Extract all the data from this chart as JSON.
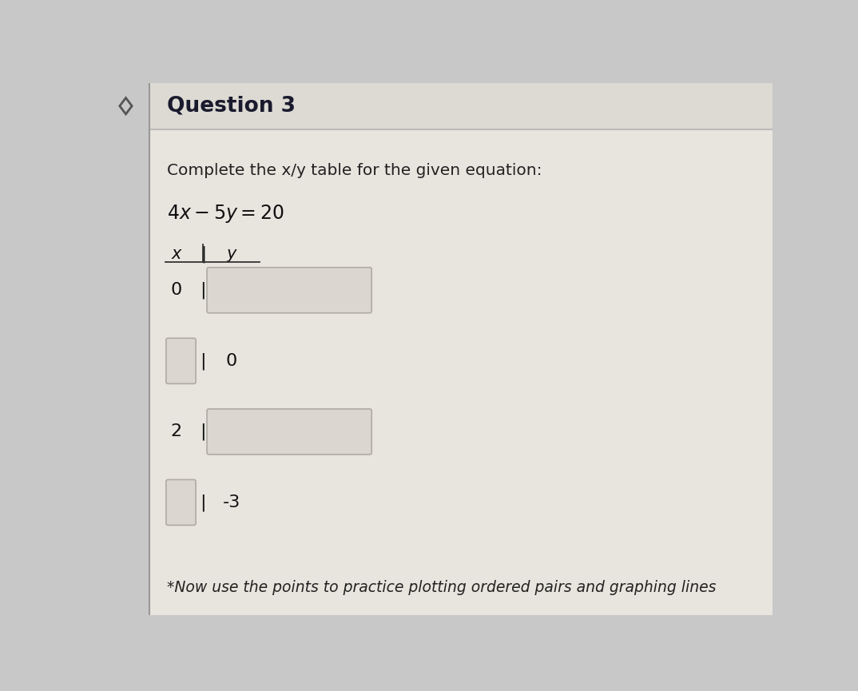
{
  "title": "Question 3",
  "bg_color": "#c8c8c8",
  "card_bg": "#e8e4de",
  "header_bg": "#e8e4de",
  "box_color": "#dbd6cf",
  "box_edge": "#b0aba4",
  "instruction": "Complete the x/y table for the given equation:",
  "equation_parts": [
    "4",
    "x",
    " − ",
    "5",
    "y",
    " = 20"
  ],
  "col_x": "x",
  "col_y": "y",
  "rows": [
    {
      "x_val": "0",
      "x_blank": false,
      "y_val": "",
      "y_blank": true
    },
    {
      "x_val": "",
      "x_blank": true,
      "y_val": "0",
      "y_blank": false
    },
    {
      "x_val": "2",
      "x_blank": false,
      "y_val": "",
      "y_blank": true
    },
    {
      "x_val": "",
      "x_blank": true,
      "y_val": "-3",
      "y_blank": false
    }
  ],
  "footer": "*Now use the points to practice plotting ordered pairs and graphing lines",
  "title_fontsize": 19,
  "instruction_fontsize": 14.5,
  "equation_fontsize": 15,
  "table_fontsize": 15,
  "footer_fontsize": 13.5
}
